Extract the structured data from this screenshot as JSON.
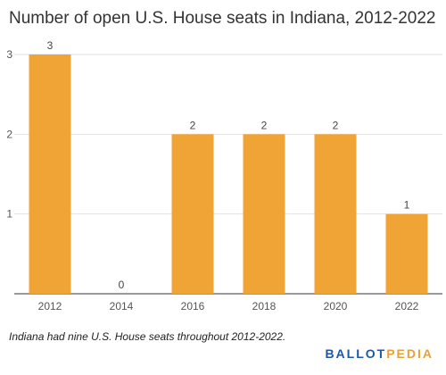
{
  "chart_data": {
    "type": "bar",
    "title": "Number of open U.S. House seats in Indiana, 2012-2022",
    "categories": [
      "2012",
      "2014",
      "2016",
      "2018",
      "2020",
      "2022"
    ],
    "values": [
      3,
      0,
      2,
      2,
      2,
      1
    ],
    "xlabel": "",
    "ylabel": "",
    "ylim": [
      0,
      3
    ],
    "yticks": [
      1,
      2,
      3
    ],
    "grid": true,
    "bar_color": "#f0a436",
    "data_labels": true
  },
  "footnote": "Indiana had nine U.S. House seats throughout 2012-2022.",
  "logo": {
    "part1": "BALLOT",
    "part2": "PEDIA"
  }
}
